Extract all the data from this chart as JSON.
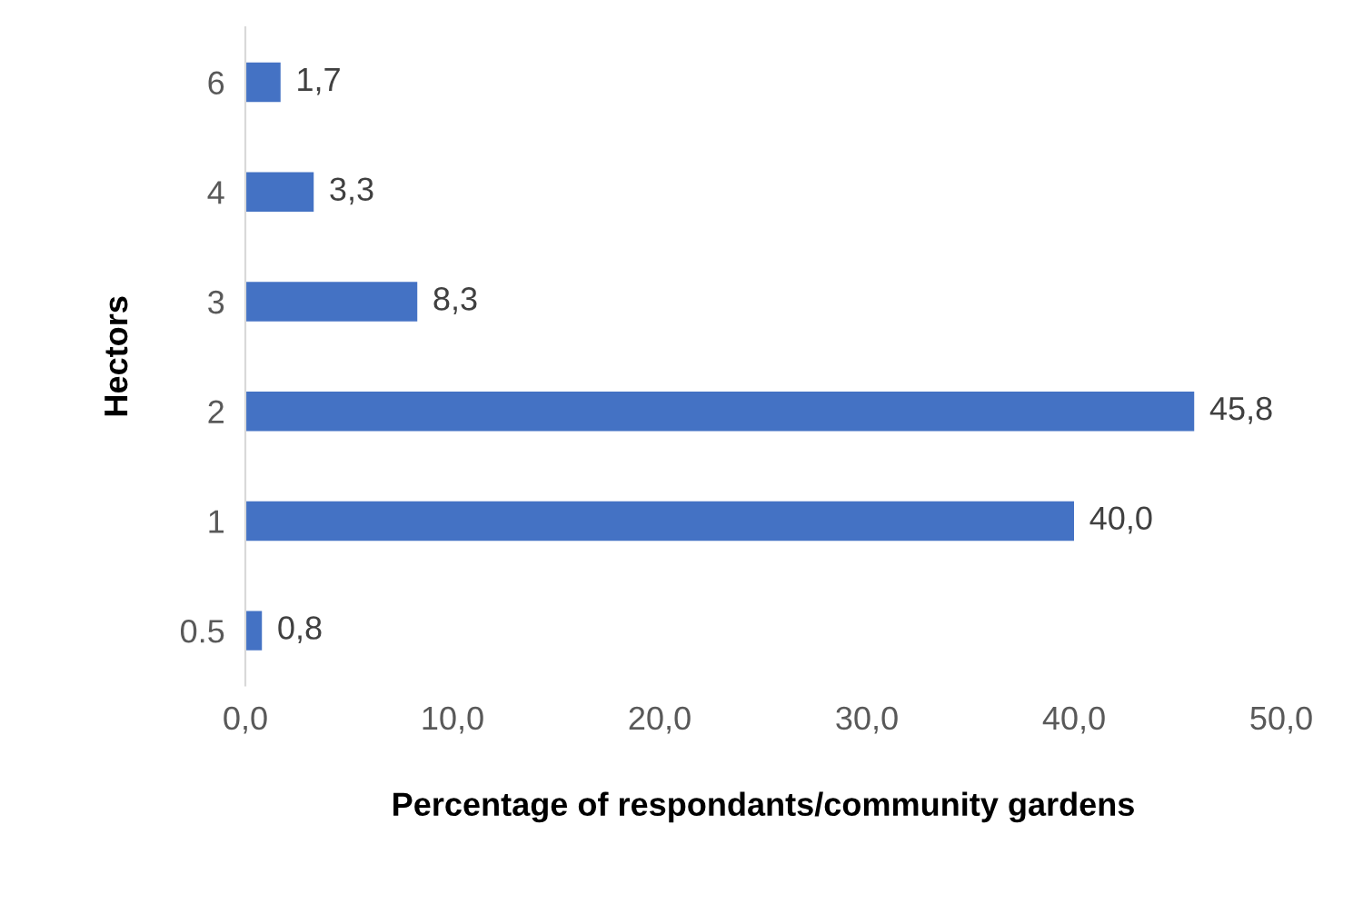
{
  "chart_data": {
    "type": "bar",
    "orientation": "horizontal",
    "categories": [
      "6",
      "4",
      "3",
      "2",
      "1",
      "0.5"
    ],
    "values": [
      1.7,
      3.3,
      8.3,
      45.8,
      40.0,
      0.8
    ],
    "value_labels": [
      "1,7",
      "3,3",
      "8,3",
      "45,8",
      "40,0",
      "0,8"
    ],
    "color": "#4472c4",
    "xlim": [
      0,
      50
    ],
    "xticks": [
      {
        "value": 0,
        "label": "0,0"
      },
      {
        "value": 10,
        "label": "10,0"
      },
      {
        "value": 20,
        "label": "20,0"
      },
      {
        "value": 30,
        "label": "30,0"
      },
      {
        "value": 40,
        "label": "40,0"
      },
      {
        "value": 50,
        "label": "50,0"
      }
    ],
    "xlabel": "Percentage of respondants/community gardens",
    "ylabel": "Hectors",
    "grid": false,
    "legend": false
  }
}
